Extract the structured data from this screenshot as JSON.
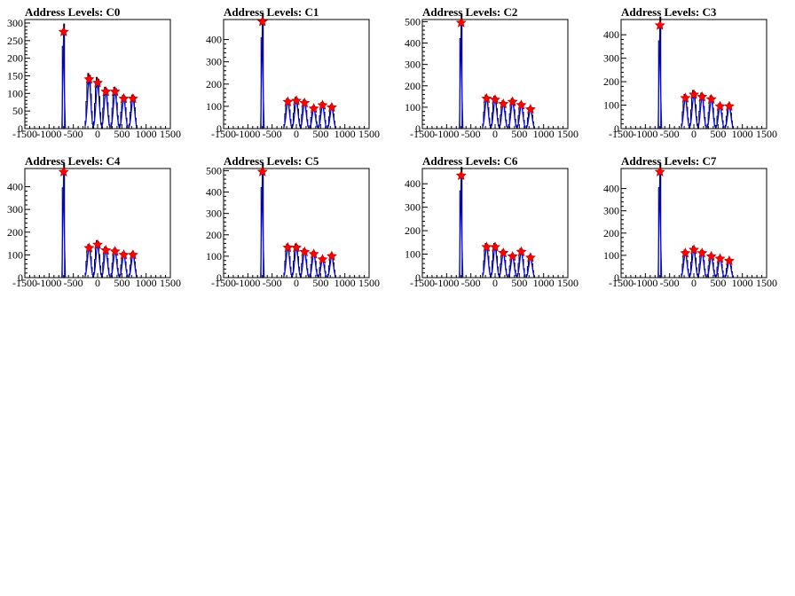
{
  "chart_data": [
    {
      "type": "line",
      "title": "Address Levels: C0",
      "xlim": [
        -1500,
        1500
      ],
      "ylim": [
        0,
        310
      ],
      "yticks": [
        0,
        50,
        100,
        150,
        200,
        250,
        300
      ],
      "xticks": [
        -1500,
        -1000,
        -500,
        0,
        500,
        1000,
        1500
      ],
      "peaks": [
        {
          "x": -700,
          "y": 275
        },
        {
          "x": -175,
          "y": 140
        },
        {
          "x": 0,
          "y": 130
        },
        {
          "x": 170,
          "y": 105
        },
        {
          "x": 360,
          "y": 105
        },
        {
          "x": 540,
          "y": 85
        },
        {
          "x": 730,
          "y": 85
        }
      ]
    },
    {
      "type": "line",
      "title": "Address Levels: C1",
      "xlim": [
        -1500,
        1500
      ],
      "ylim": [
        0,
        490
      ],
      "yticks": [
        0,
        100,
        200,
        300,
        400
      ],
      "xticks": [
        -1500,
        -1000,
        -500,
        0,
        500,
        1000,
        1500
      ],
      "peaks": [
        {
          "x": -700,
          "y": 480
        },
        {
          "x": -175,
          "y": 120
        },
        {
          "x": 0,
          "y": 125
        },
        {
          "x": 170,
          "y": 115
        },
        {
          "x": 360,
          "y": 90
        },
        {
          "x": 540,
          "y": 105
        },
        {
          "x": 730,
          "y": 95
        }
      ]
    },
    {
      "type": "line",
      "title": "Address Levels: C2",
      "xlim": [
        -1500,
        1500
      ],
      "ylim": [
        0,
        510
      ],
      "yticks": [
        0,
        100,
        200,
        300,
        400,
        500
      ],
      "xticks": [
        -1500,
        -1000,
        -500,
        0,
        500,
        1000,
        1500
      ],
      "peaks": [
        {
          "x": -700,
          "y": 495
        },
        {
          "x": -175,
          "y": 140
        },
        {
          "x": 0,
          "y": 135
        },
        {
          "x": 170,
          "y": 115
        },
        {
          "x": 360,
          "y": 125
        },
        {
          "x": 540,
          "y": 110
        },
        {
          "x": 730,
          "y": 90
        }
      ]
    },
    {
      "type": "line",
      "title": "Address Levels: C3",
      "xlim": [
        -1500,
        1500
      ],
      "ylim": [
        0,
        465
      ],
      "yticks": [
        0,
        100,
        200,
        300,
        400
      ],
      "xticks": [
        -1500,
        -1000,
        -500,
        0,
        500,
        1000,
        1500
      ],
      "peaks": [
        {
          "x": -700,
          "y": 440
        },
        {
          "x": -175,
          "y": 130
        },
        {
          "x": 0,
          "y": 145
        },
        {
          "x": 170,
          "y": 135
        },
        {
          "x": 360,
          "y": 125
        },
        {
          "x": 540,
          "y": 95
        },
        {
          "x": 730,
          "y": 95
        }
      ]
    },
    {
      "type": "line",
      "title": "Address Levels: C4",
      "xlim": [
        -1500,
        1500
      ],
      "ylim": [
        0,
        480
      ],
      "yticks": [
        0,
        100,
        200,
        300,
        400
      ],
      "xticks": [
        -1500,
        -1000,
        -500,
        0,
        500,
        1000,
        1500
      ],
      "peaks": [
        {
          "x": -700,
          "y": 465
        },
        {
          "x": -175,
          "y": 130
        },
        {
          "x": 0,
          "y": 145
        },
        {
          "x": 170,
          "y": 120
        },
        {
          "x": 360,
          "y": 115
        },
        {
          "x": 540,
          "y": 100
        },
        {
          "x": 730,
          "y": 100
        }
      ]
    },
    {
      "type": "line",
      "title": "Address Levels: C5",
      "xlim": [
        -1500,
        1500
      ],
      "ylim": [
        0,
        510
      ],
      "yticks": [
        0,
        100,
        200,
        300,
        400,
        500
      ],
      "xticks": [
        -1500,
        -1000,
        -500,
        0,
        500,
        1000,
        1500
      ],
      "peaks": [
        {
          "x": -700,
          "y": 495
        },
        {
          "x": -175,
          "y": 140
        },
        {
          "x": 0,
          "y": 140
        },
        {
          "x": 170,
          "y": 120
        },
        {
          "x": 360,
          "y": 110
        },
        {
          "x": 540,
          "y": 85
        },
        {
          "x": 730,
          "y": 100
        }
      ]
    },
    {
      "type": "line",
      "title": "Address Levels: C6",
      "xlim": [
        -1500,
        1500
      ],
      "ylim": [
        0,
        465
      ],
      "yticks": [
        0,
        100,
        200,
        300,
        400
      ],
      "xticks": [
        -1500,
        -1000,
        -500,
        0,
        500,
        1000,
        1500
      ],
      "peaks": [
        {
          "x": -700,
          "y": 435
        },
        {
          "x": -175,
          "y": 130
        },
        {
          "x": 0,
          "y": 130
        },
        {
          "x": 170,
          "y": 105
        },
        {
          "x": 360,
          "y": 90
        },
        {
          "x": 540,
          "y": 110
        },
        {
          "x": 730,
          "y": 85
        }
      ]
    },
    {
      "type": "line",
      "title": "Address Levels: C7",
      "xlim": [
        -1500,
        1500
      ],
      "ylim": [
        0,
        490
      ],
      "yticks": [
        0,
        100,
        200,
        300,
        400
      ],
      "xticks": [
        -1500,
        -1000,
        -500,
        0,
        500,
        1000,
        1500
      ],
      "peaks": [
        {
          "x": -700,
          "y": 475
        },
        {
          "x": -175,
          "y": 110
        },
        {
          "x": 0,
          "y": 125
        },
        {
          "x": 170,
          "y": 110
        },
        {
          "x": 360,
          "y": 95
        },
        {
          "x": 540,
          "y": 85
        },
        {
          "x": 730,
          "y": 75
        }
      ]
    }
  ],
  "colors": {
    "histogram": "#000000",
    "fit": "#0000ff",
    "marker": "#ff0000"
  }
}
